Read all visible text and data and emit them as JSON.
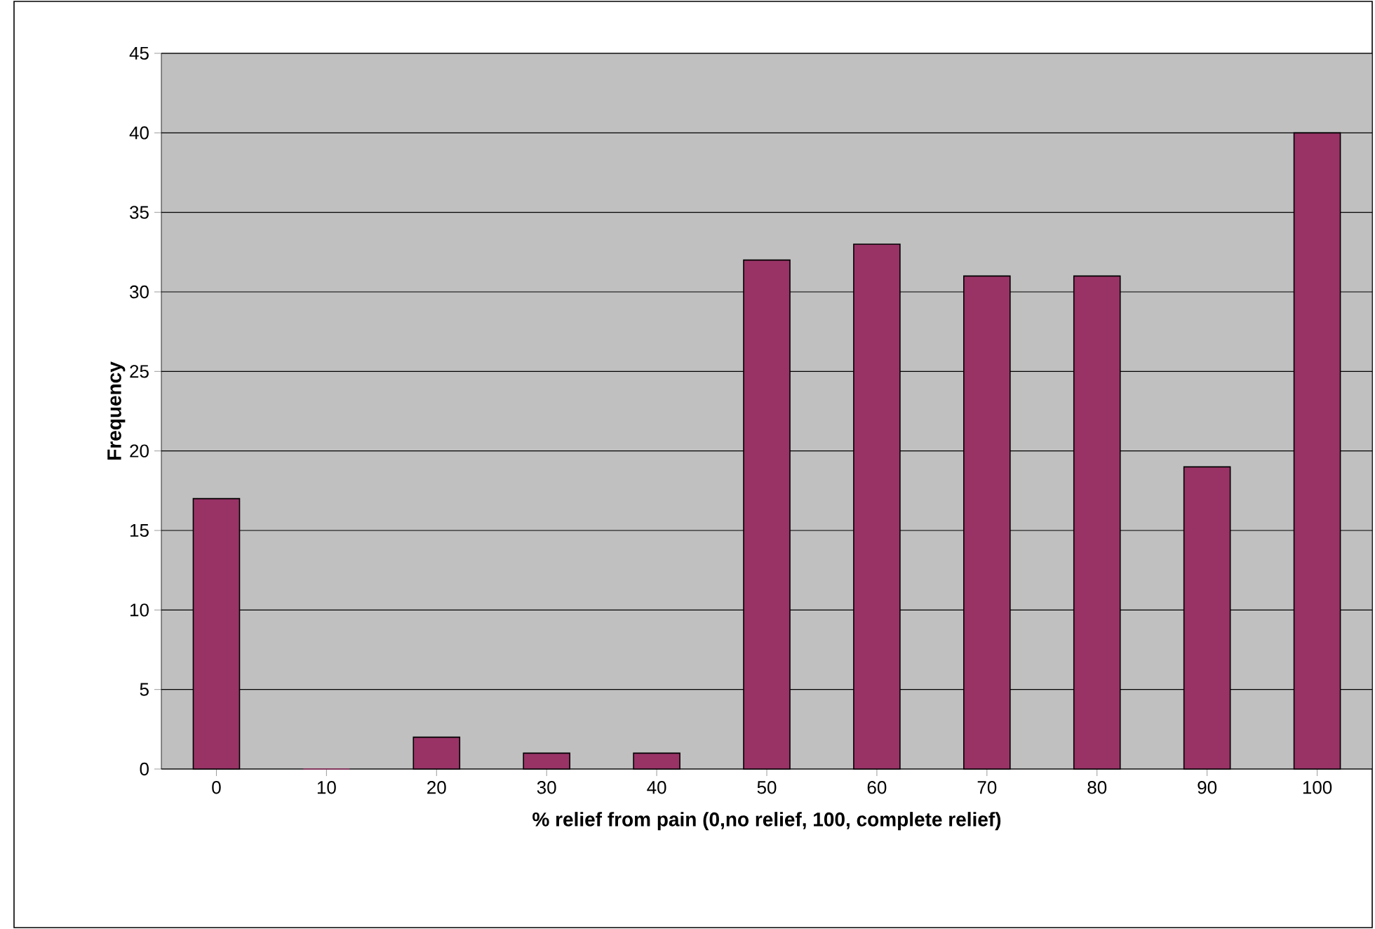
{
  "chart_data": {
    "type": "bar",
    "xlabel": "% relief from pain (0,no relief, 100, complete  relief)",
    "ylabel": "Frequency",
    "categories": [
      "0",
      "10",
      "20",
      "30",
      "40",
      "50",
      "60",
      "70",
      "80",
      "90",
      "100"
    ],
    "values": [
      17,
      0,
      2,
      1,
      1,
      32,
      33,
      31,
      31,
      19,
      40
    ],
    "color": "#993366",
    "ylim": [
      0,
      45
    ],
    "yticks": [
      0,
      5,
      10,
      15,
      20,
      25,
      30,
      35,
      40,
      45
    ],
    "grid": "y"
  }
}
